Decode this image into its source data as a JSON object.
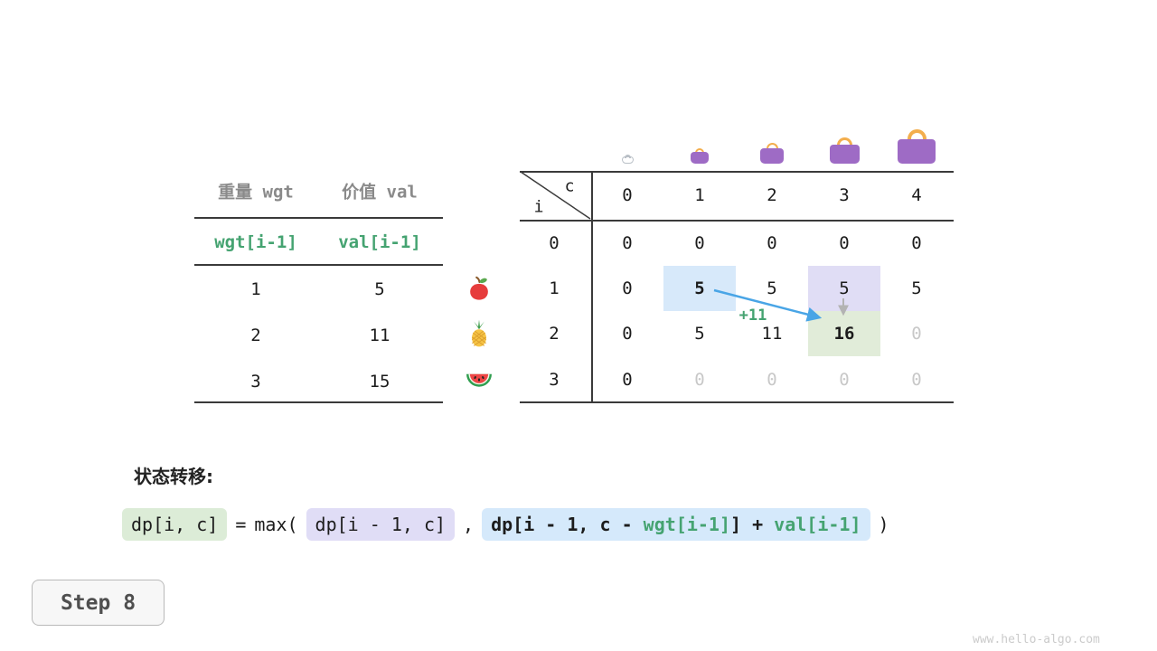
{
  "page": {
    "step_label": "Step 8",
    "watermark": "www.hello-algo.com"
  },
  "formula": {
    "title": "状态转移:",
    "lhs": "dp[i, c]",
    "eq": "=",
    "max_open": "max(",
    "arg1": "dp[i - 1, c]",
    "comma": ",",
    "arg2": {
      "prefix": "dp[i - 1, c - ",
      "wgt": "wgt[i-1]",
      "mid": "] + ",
      "val": "val[i-1]"
    },
    "close": ")"
  },
  "items_table": {
    "col_headers": [
      "重量 wgt",
      "价值 val"
    ],
    "formula_row": [
      "wgt[i-1]",
      "val[i-1]"
    ],
    "rows": [
      [
        "1",
        "5"
      ],
      [
        "2",
        "11"
      ],
      [
        "3",
        "15"
      ]
    ]
  },
  "dp_table": {
    "corner_top": "c",
    "corner_bottom": "i",
    "col_headers": [
      "0",
      "1",
      "2",
      "3",
      "4"
    ],
    "row_headers": [
      "0",
      "1",
      "2",
      "3"
    ],
    "row_icons": [
      "",
      "apple",
      "pineapple",
      "watermelon"
    ],
    "annotation": "+11",
    "cells": [
      [
        {
          "v": "0"
        },
        {
          "v": "0"
        },
        {
          "v": "0"
        },
        {
          "v": "0"
        },
        {
          "v": "0"
        }
      ],
      [
        {
          "v": "0"
        },
        {
          "v": "5",
          "hl": "blue",
          "bold": true
        },
        {
          "v": "5"
        },
        {
          "v": "5",
          "hl": "purple"
        },
        {
          "v": "5"
        }
      ],
      [
        {
          "v": "0"
        },
        {
          "v": "5"
        },
        {
          "v": "11"
        },
        {
          "v": "16",
          "hl": "green",
          "bold": true
        },
        {
          "v": "0",
          "dim": true
        }
      ],
      [
        {
          "v": "0"
        },
        {
          "v": "0",
          "dim": true
        },
        {
          "v": "0",
          "dim": true
        },
        {
          "v": "0",
          "dim": true
        },
        {
          "v": "0",
          "dim": true
        }
      ]
    ]
  },
  "colors": {
    "accent_green": "#45a371",
    "arrow_blue": "#49a5e6",
    "cell_blue": "#d7e9fa",
    "cell_purple": "#e0ddf5",
    "cell_green": "#e1ecd9",
    "dim_text": "#c8c8c8",
    "bag_purple": "#9e6bc5",
    "bag_handle": "#f3ae4d"
  }
}
